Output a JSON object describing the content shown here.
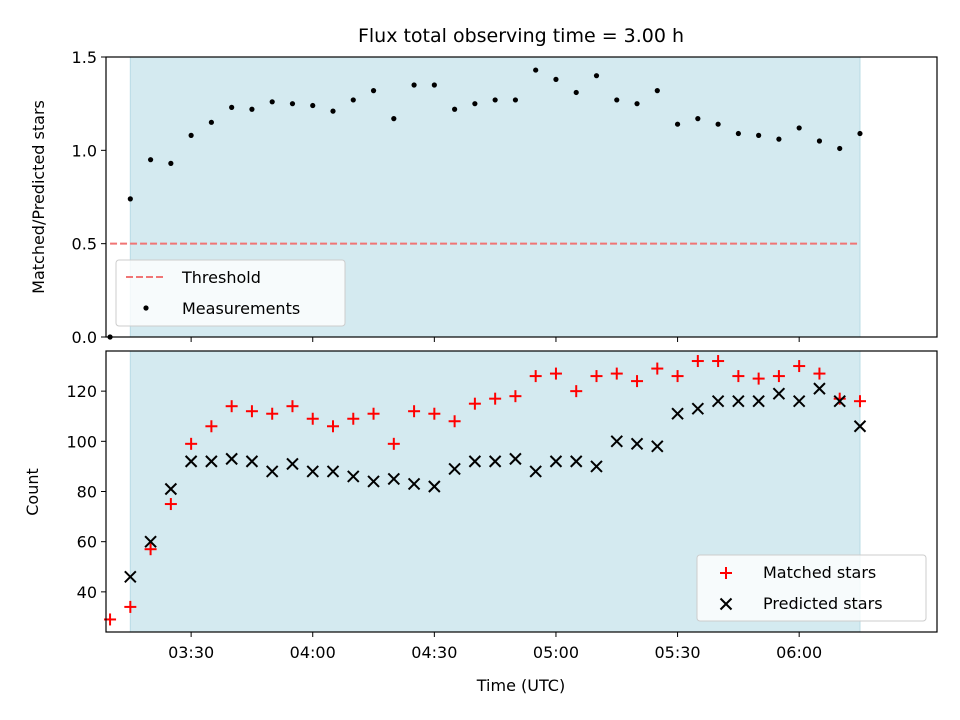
{
  "colors": {
    "shade": "#d4eaf0",
    "shade_edge": "#b9dce6",
    "threshold": "#f07575",
    "measurement": "#000000",
    "matched": "#ff0000",
    "predicted": "#000000"
  },
  "chart_data": [
    {
      "type": "scatter",
      "title": "Flux total observing time = 3.00 h",
      "ylabel": "Matched/Predicted stars",
      "xlabel": "",
      "ylim": [
        0,
        1.5
      ],
      "xlim": [
        "03:09",
        "06:34"
      ],
      "yticks": [
        "0.0",
        "0.5",
        "1.0",
        "1.5"
      ],
      "xticks": [
        "03:30",
        "04:00",
        "04:30",
        "05:00",
        "05:30",
        "06:00"
      ],
      "shaded_span": [
        "03:15",
        "06:15"
      ],
      "threshold": {
        "name": "Threshold",
        "y": 0.5,
        "x_start": "03:10",
        "x_end": "06:15"
      },
      "legend": {
        "placement": "lower-left",
        "entries": [
          "Threshold",
          "Measurements"
        ]
      },
      "series": [
        {
          "name": "Measurements",
          "x": [
            "03:10",
            "03:15",
            "03:20",
            "03:25",
            "03:30",
            "03:35",
            "03:40",
            "03:45",
            "03:50",
            "03:55",
            "04:00",
            "04:05",
            "04:10",
            "04:15",
            "04:20",
            "04:25",
            "04:30",
            "04:35",
            "04:40",
            "04:45",
            "04:50",
            "04:55",
            "05:00",
            "05:05",
            "05:10",
            "05:15",
            "05:20",
            "05:25",
            "05:30",
            "05:35",
            "05:40",
            "05:45",
            "05:50",
            "05:55",
            "06:00",
            "06:05",
            "06:10",
            "06:15"
          ],
          "y": [
            0.0,
            0.74,
            0.95,
            0.93,
            1.08,
            1.15,
            1.23,
            1.22,
            1.26,
            1.25,
            1.24,
            1.21,
            1.27,
            1.32,
            1.17,
            1.35,
            1.35,
            1.22,
            1.25,
            1.27,
            1.27,
            1.43,
            1.38,
            1.31,
            1.4,
            1.27,
            1.25,
            1.32,
            1.14,
            1.17,
            1.14,
            1.09,
            1.08,
            1.06,
            1.12,
            1.05,
            1.01,
            1.09
          ]
        }
      ]
    },
    {
      "type": "scatter",
      "title": "",
      "ylabel": "Count",
      "xlabel": "Time (UTC)",
      "ylim": [
        24,
        136
      ],
      "xlim": [
        "03:09",
        "06:34"
      ],
      "yticks": [
        "40",
        "60",
        "80",
        "100",
        "120"
      ],
      "xticks": [
        "03:30",
        "04:00",
        "04:30",
        "05:00",
        "05:30",
        "06:00"
      ],
      "shaded_span": [
        "03:15",
        "06:15"
      ],
      "legend": {
        "placement": "lower-right",
        "entries": [
          "Matched stars",
          "Predicted stars"
        ]
      },
      "series": [
        {
          "name": "Matched stars",
          "x": [
            "03:10",
            "03:15",
            "03:20",
            "03:25",
            "03:30",
            "03:35",
            "03:40",
            "03:45",
            "03:50",
            "03:55",
            "04:00",
            "04:05",
            "04:10",
            "04:15",
            "04:20",
            "04:25",
            "04:30",
            "04:35",
            "04:40",
            "04:45",
            "04:50",
            "04:55",
            "05:00",
            "05:05",
            "05:10",
            "05:15",
            "05:20",
            "05:25",
            "05:30",
            "05:35",
            "05:40",
            "05:45",
            "05:50",
            "05:55",
            "06:00",
            "06:05",
            "06:10",
            "06:15"
          ],
          "y": [
            29,
            34,
            57,
            75,
            99,
            106,
            114,
            112,
            111,
            114,
            109,
            106,
            109,
            111,
            99,
            112,
            111,
            108,
            115,
            117,
            118,
            126,
            127,
            120,
            126,
            127,
            124,
            129,
            126,
            132,
            132,
            126,
            125,
            126,
            130,
            127,
            117,
            116
          ]
        },
        {
          "name": "Predicted stars",
          "x": [
            "03:15",
            "03:20",
            "03:25",
            "03:30",
            "03:35",
            "03:40",
            "03:45",
            "03:50",
            "03:55",
            "04:00",
            "04:05",
            "04:10",
            "04:15",
            "04:20",
            "04:25",
            "04:30",
            "04:35",
            "04:40",
            "04:45",
            "04:50",
            "04:55",
            "05:00",
            "05:05",
            "05:10",
            "05:15",
            "05:20",
            "05:25",
            "05:30",
            "05:35",
            "05:40",
            "05:45",
            "05:50",
            "05:55",
            "06:00",
            "06:05",
            "06:10",
            "06:15"
          ],
          "y": [
            46,
            60,
            81,
            92,
            92,
            93,
            92,
            88,
            91,
            88,
            88,
            86,
            84,
            85,
            83,
            82,
            89,
            92,
            92,
            93,
            88,
            92,
            92,
            90,
            100,
            99,
            98,
            111,
            113,
            116,
            116,
            116,
            119,
            116,
            121,
            116,
            106
          ]
        }
      ]
    }
  ]
}
